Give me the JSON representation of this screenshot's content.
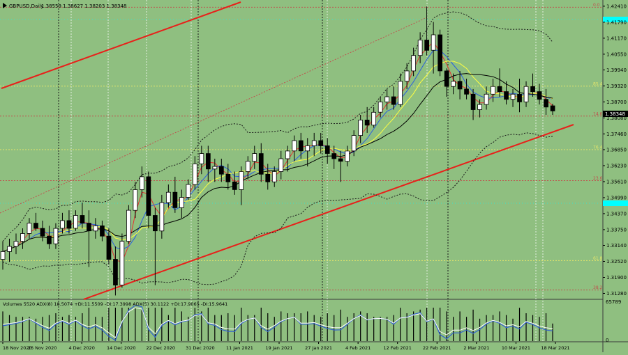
{
  "header": {
    "symbol": "GBPUSD,Daily",
    "ohlc": "1.38559 1.38627 1.38203 1.38348"
  },
  "price_axis": {
    "labels": [
      "1.42410",
      "1.41790",
      "1.41170",
      "1.40550",
      "1.39940",
      "1.39320",
      "1.38700",
      "1.38080",
      "1.37460",
      "1.36850",
      "1.36230",
      "1.35610",
      "1.34990",
      "1.34370",
      "1.33750",
      "1.33140",
      "1.32520",
      "1.31900",
      "1.31280"
    ],
    "current_price": "1.38348"
  },
  "fibo_levels": [
    {
      "label": "0.0",
      "value": 1.4237
    },
    {
      "label": "85.4",
      "value": 1.3931
    },
    {
      "label": "14.6",
      "value": 1.3815
    },
    {
      "label": "76.4",
      "value": 1.3685
    },
    {
      "label": "23.6",
      "value": 1.3565
    },
    {
      "label": "61.8",
      "value": 1.3255
    },
    {
      "label": "38.2",
      "value": 1.3141
    }
  ],
  "indicator": {
    "title": "Volumes 5520   ADX(8) 18.5074  +DI:11.5509  -DI:17.3998   ADX(5) 30.1122  +DI:17.9065  -DI:15.9641",
    "scale_top": "65789",
    "scale_bottom": "0"
  },
  "date_axis": [
    "18 Nov 2020",
    "26 Nov 2020",
    "4 Dec 2020",
    "14 Dec 2020",
    "22 Dec 2020",
    "31 Dec 2020",
    "11 Jan 2021",
    "19 Jan 2021",
    "27 Jan 2021",
    "4 Feb 2021",
    "12 Feb 2021",
    "22 Feb 2021",
    "2 Mar 2021",
    "10 Mar 2021",
    "18 Mar 2021"
  ],
  "colors": {
    "background": "#8fbf80",
    "bull_candle": "#ffffff",
    "bear_candle": "#000000",
    "trend_channel": "#e8201a",
    "fibo_red": "#c0504d",
    "fibo_yellow": "#e6e66a",
    "ma_red": "#e53030",
    "ma_blue": "#2a5de0",
    "ma_yellow": "#ffff40",
    "ma_black": "#000000",
    "bollinger": "#1a1a1a",
    "cyan_marker": "#00ffff",
    "adx_blue": "#3060d0",
    "adx_white": "#ffffff"
  },
  "chart_data": {
    "type": "candlestick",
    "title": "GBPUSD,Daily",
    "ylim": [
      1.3105,
      1.4265
    ],
    "x": [
      "18 Nov 2020",
      "26 Nov 2020",
      "4 Dec 2020",
      "14 Dec 2020",
      "22 Dec 2020",
      "31 Dec 2020",
      "11 Jan 2021",
      "19 Jan 2021",
      "27 Jan 2021",
      "4 Feb 2021",
      "12 Feb 2021",
      "22 Feb 2021",
      "2 Mar 2021",
      "10 Mar 2021",
      "18 Mar 2021"
    ],
    "candles": [
      {
        "o": 1.326,
        "h": 1.333,
        "l": 1.322,
        "c": 1.329
      },
      {
        "o": 1.329,
        "h": 1.334,
        "l": 1.325,
        "c": 1.331
      },
      {
        "o": 1.331,
        "h": 1.336,
        "l": 1.328,
        "c": 1.333
      },
      {
        "o": 1.333,
        "h": 1.338,
        "l": 1.33,
        "c": 1.336
      },
      {
        "o": 1.336,
        "h": 1.342,
        "l": 1.334,
        "c": 1.34
      },
      {
        "o": 1.34,
        "h": 1.344,
        "l": 1.337,
        "c": 1.338
      },
      {
        "o": 1.338,
        "h": 1.341,
        "l": 1.333,
        "c": 1.335
      },
      {
        "o": 1.335,
        "h": 1.339,
        "l": 1.33,
        "c": 1.332
      },
      {
        "o": 1.332,
        "h": 1.34,
        "l": 1.33,
        "c": 1.338
      },
      {
        "o": 1.338,
        "h": 1.344,
        "l": 1.336,
        "c": 1.341
      },
      {
        "o": 1.341,
        "h": 1.345,
        "l": 1.336,
        "c": 1.338
      },
      {
        "o": 1.338,
        "h": 1.345,
        "l": 1.337,
        "c": 1.343
      },
      {
        "o": 1.343,
        "h": 1.348,
        "l": 1.338,
        "c": 1.34
      },
      {
        "o": 1.34,
        "h": 1.345,
        "l": 1.323,
        "c": 1.337
      },
      {
        "o": 1.337,
        "h": 1.342,
        "l": 1.334,
        "c": 1.339
      },
      {
        "o": 1.339,
        "h": 1.341,
        "l": 1.333,
        "c": 1.335
      },
      {
        "o": 1.335,
        "h": 1.338,
        "l": 1.324,
        "c": 1.326
      },
      {
        "o": 1.326,
        "h": 1.331,
        "l": 1.312,
        "c": 1.316
      },
      {
        "o": 1.316,
        "h": 1.336,
        "l": 1.315,
        "c": 1.333
      },
      {
        "o": 1.333,
        "h": 1.347,
        "l": 1.332,
        "c": 1.345
      },
      {
        "o": 1.345,
        "h": 1.356,
        "l": 1.342,
        "c": 1.353
      },
      {
        "o": 1.353,
        "h": 1.362,
        "l": 1.35,
        "c": 1.358
      },
      {
        "o": 1.358,
        "h": 1.36,
        "l": 1.338,
        "c": 1.343
      },
      {
        "o": 1.343,
        "h": 1.346,
        "l": 1.316,
        "c": 1.337
      },
      {
        "o": 1.337,
        "h": 1.351,
        "l": 1.334,
        "c": 1.348
      },
      {
        "o": 1.348,
        "h": 1.355,
        "l": 1.346,
        "c": 1.352
      },
      {
        "o": 1.352,
        "h": 1.358,
        "l": 1.344,
        "c": 1.346
      },
      {
        "o": 1.346,
        "h": 1.353,
        "l": 1.342,
        "c": 1.35
      },
      {
        "o": 1.35,
        "h": 1.357,
        "l": 1.349,
        "c": 1.355
      },
      {
        "o": 1.355,
        "h": 1.366,
        "l": 1.353,
        "c": 1.363
      },
      {
        "o": 1.363,
        "h": 1.37,
        "l": 1.359,
        "c": 1.367
      },
      {
        "o": 1.367,
        "h": 1.37,
        "l": 1.356,
        "c": 1.361
      },
      {
        "o": 1.361,
        "h": 1.365,
        "l": 1.356,
        "c": 1.362
      },
      {
        "o": 1.362,
        "h": 1.365,
        "l": 1.356,
        "c": 1.359
      },
      {
        "o": 1.359,
        "h": 1.363,
        "l": 1.353,
        "c": 1.356
      },
      {
        "o": 1.356,
        "h": 1.36,
        "l": 1.351,
        "c": 1.353
      },
      {
        "o": 1.353,
        "h": 1.362,
        "l": 1.347,
        "c": 1.36
      },
      {
        "o": 1.36,
        "h": 1.366,
        "l": 1.357,
        "c": 1.364
      },
      {
        "o": 1.364,
        "h": 1.37,
        "l": 1.361,
        "c": 1.367
      },
      {
        "o": 1.367,
        "h": 1.371,
        "l": 1.356,
        "c": 1.359
      },
      {
        "o": 1.359,
        "h": 1.363,
        "l": 1.353,
        "c": 1.356
      },
      {
        "o": 1.356,
        "h": 1.362,
        "l": 1.354,
        "c": 1.36
      },
      {
        "o": 1.36,
        "h": 1.368,
        "l": 1.357,
        "c": 1.365
      },
      {
        "o": 1.365,
        "h": 1.37,
        "l": 1.36,
        "c": 1.368
      },
      {
        "o": 1.368,
        "h": 1.374,
        "l": 1.364,
        "c": 1.372
      },
      {
        "o": 1.372,
        "h": 1.375,
        "l": 1.365,
        "c": 1.368
      },
      {
        "o": 1.368,
        "h": 1.373,
        "l": 1.362,
        "c": 1.37
      },
      {
        "o": 1.37,
        "h": 1.375,
        "l": 1.366,
        "c": 1.372
      },
      {
        "o": 1.372,
        "h": 1.375,
        "l": 1.367,
        "c": 1.37
      },
      {
        "o": 1.37,
        "h": 1.373,
        "l": 1.363,
        "c": 1.367
      },
      {
        "o": 1.367,
        "h": 1.37,
        "l": 1.361,
        "c": 1.365
      },
      {
        "o": 1.365,
        "h": 1.368,
        "l": 1.356,
        "c": 1.364
      },
      {
        "o": 1.364,
        "h": 1.37,
        "l": 1.362,
        "c": 1.368
      },
      {
        "o": 1.368,
        "h": 1.376,
        "l": 1.366,
        "c": 1.374
      },
      {
        "o": 1.374,
        "h": 1.382,
        "l": 1.371,
        "c": 1.38
      },
      {
        "o": 1.38,
        "h": 1.385,
        "l": 1.375,
        "c": 1.378
      },
      {
        "o": 1.378,
        "h": 1.385,
        "l": 1.377,
        "c": 1.383
      },
      {
        "o": 1.383,
        "h": 1.389,
        "l": 1.381,
        "c": 1.387
      },
      {
        "o": 1.387,
        "h": 1.392,
        "l": 1.384,
        "c": 1.389
      },
      {
        "o": 1.389,
        "h": 1.393,
        "l": 1.384,
        "c": 1.386
      },
      {
        "o": 1.386,
        "h": 1.398,
        "l": 1.385,
        "c": 1.395
      },
      {
        "o": 1.395,
        "h": 1.402,
        "l": 1.392,
        "c": 1.399
      },
      {
        "o": 1.399,
        "h": 1.408,
        "l": 1.397,
        "c": 1.405
      },
      {
        "o": 1.405,
        "h": 1.414,
        "l": 1.402,
        "c": 1.411
      },
      {
        "o": 1.411,
        "h": 1.424,
        "l": 1.405,
        "c": 1.407
      },
      {
        "o": 1.407,
        "h": 1.418,
        "l": 1.398,
        "c": 1.413
      },
      {
        "o": 1.413,
        "h": 1.415,
        "l": 1.397,
        "c": 1.399
      },
      {
        "o": 1.399,
        "h": 1.4,
        "l": 1.389,
        "c": 1.393
      },
      {
        "o": 1.393,
        "h": 1.398,
        "l": 1.39,
        "c": 1.395
      },
      {
        "o": 1.395,
        "h": 1.399,
        "l": 1.388,
        "c": 1.392
      },
      {
        "o": 1.392,
        "h": 1.396,
        "l": 1.388,
        "c": 1.39
      },
      {
        "o": 1.39,
        "h": 1.392,
        "l": 1.38,
        "c": 1.384
      },
      {
        "o": 1.384,
        "h": 1.388,
        "l": 1.381,
        "c": 1.386
      },
      {
        "o": 1.386,
        "h": 1.393,
        "l": 1.384,
        "c": 1.39
      },
      {
        "o": 1.39,
        "h": 1.396,
        "l": 1.387,
        "c": 1.393
      },
      {
        "o": 1.393,
        "h": 1.4,
        "l": 1.389,
        "c": 1.391
      },
      {
        "o": 1.391,
        "h": 1.395,
        "l": 1.386,
        "c": 1.388
      },
      {
        "o": 1.388,
        "h": 1.392,
        "l": 1.385,
        "c": 1.39
      },
      {
        "o": 1.39,
        "h": 1.396,
        "l": 1.383,
        "c": 1.387
      },
      {
        "o": 1.387,
        "h": 1.395,
        "l": 1.385,
        "c": 1.393
      },
      {
        "o": 1.393,
        "h": 1.398,
        "l": 1.389,
        "c": 1.391
      },
      {
        "o": 1.391,
        "h": 1.394,
        "l": 1.386,
        "c": 1.388
      },
      {
        "o": 1.388,
        "h": 1.392,
        "l": 1.382,
        "c": 1.385
      },
      {
        "o": 1.3855,
        "h": 1.3863,
        "l": 1.382,
        "c": 1.3835
      }
    ]
  }
}
